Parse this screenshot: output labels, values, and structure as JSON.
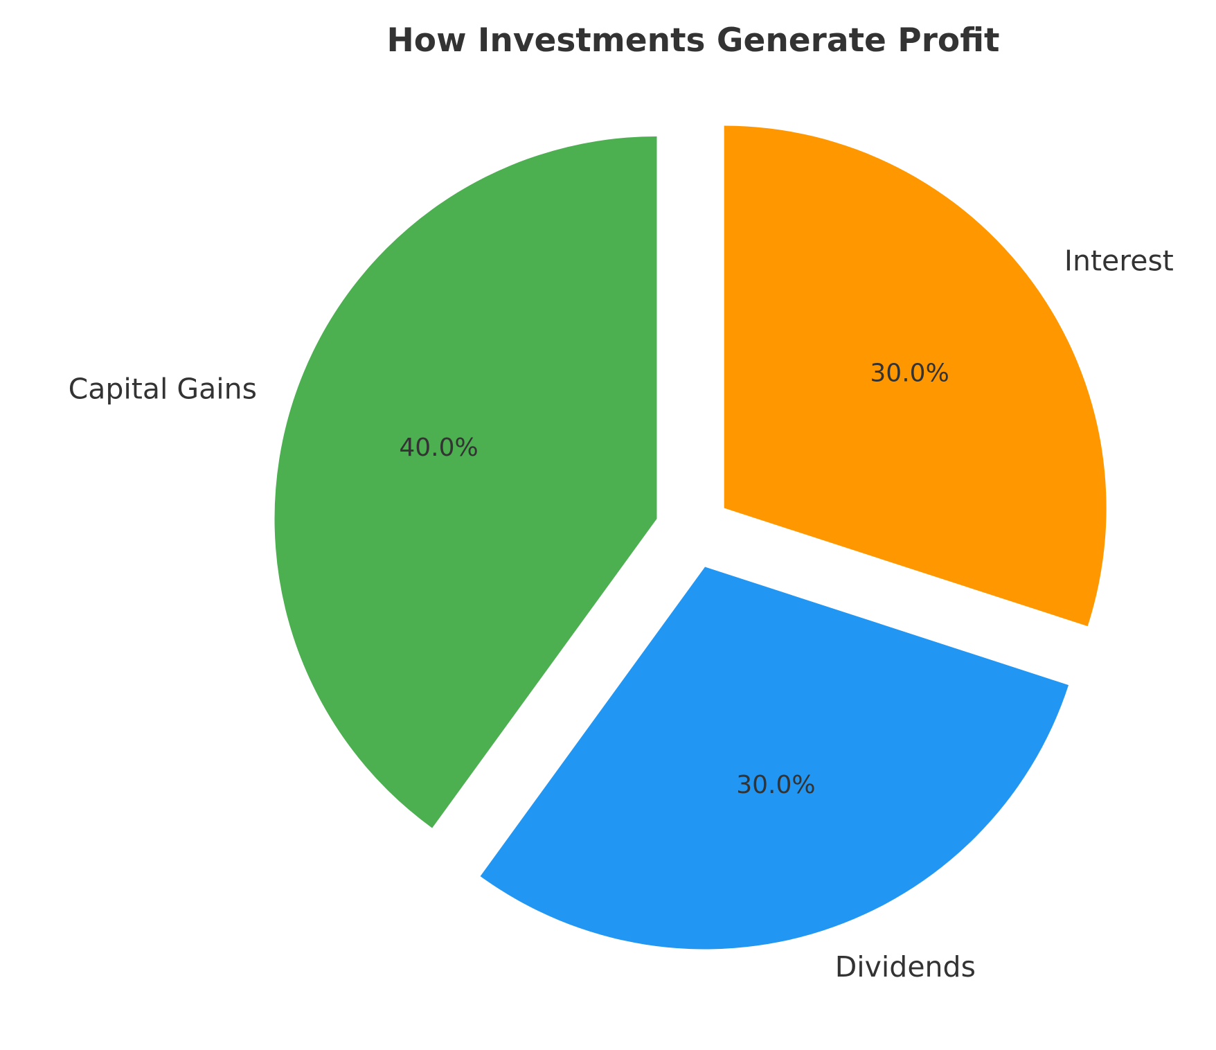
{
  "chart_data": {
    "type": "pie",
    "title": "How Investments Generate Profit",
    "slices": [
      {
        "label": "Capital Gains",
        "value": 40,
        "pct_label": "40.0%",
        "color": "#4CAF50",
        "exploded": true
      },
      {
        "label": "Dividends",
        "value": 30,
        "pct_label": "30.0%",
        "color": "#2196F3",
        "exploded": true
      },
      {
        "label": "Interest",
        "value": 30,
        "pct_label": "30.0%",
        "color": "#FF9800",
        "exploded": true
      }
    ],
    "start": "top",
    "direction": "counterclockwise",
    "legend": "none"
  }
}
